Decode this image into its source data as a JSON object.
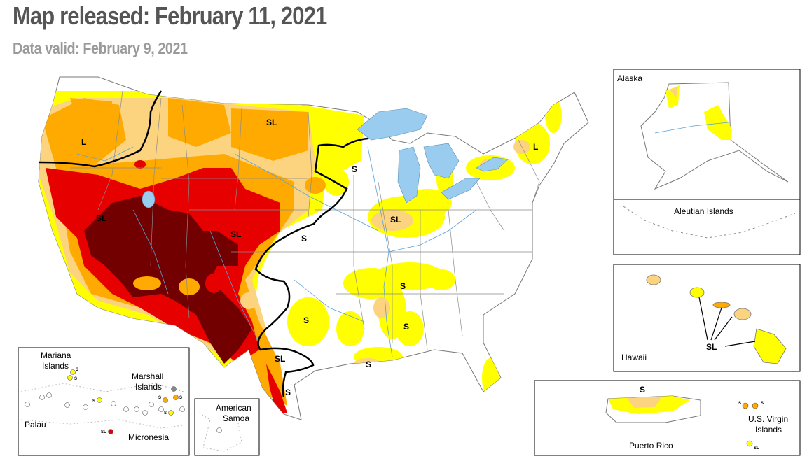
{
  "header": {
    "title": "Map released: February 11, 2021",
    "subtitle": "Data valid: February 9, 2021"
  },
  "colors": {
    "D0": "#ffff00",
    "D1": "#fcd37f",
    "D2": "#ffaa00",
    "D3": "#e60000",
    "D4": "#730000",
    "water": "#99ccee",
    "boundary": "#000000"
  },
  "impact_labels": {
    "sl": "SL",
    "s": "S",
    "l": "L"
  },
  "insets": {
    "alaska": {
      "label": "Alaska"
    },
    "aleutian": {
      "label": "Aleutian Islands"
    },
    "hawaii": {
      "label": "Hawaii"
    },
    "puerto_rico": {
      "label": "Puerto Rico"
    },
    "virgin_islands": {
      "label_line1": "U.S. Virgin",
      "label_line2": "Islands"
    },
    "pacific": {
      "mariana_line1": "Mariana",
      "mariana_line2": "Islands",
      "marshall_line1": "Marshall",
      "marshall_line2": "Islands",
      "palau": "Palau",
      "micronesia": "Micronesia"
    },
    "american_samoa": {
      "label_line1": "American",
      "label_line2": "Samoa"
    }
  }
}
